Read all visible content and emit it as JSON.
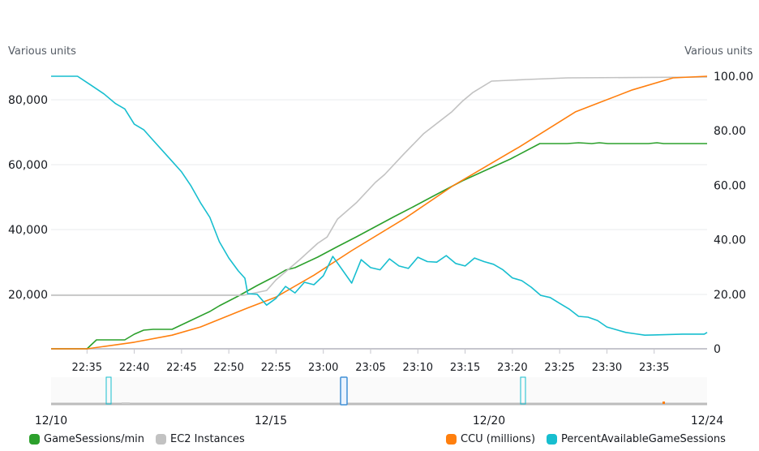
{
  "chart_data": {
    "type": "line",
    "left_axis": {
      "label": "Various units",
      "ticks": [
        20000,
        40000,
        60000,
        80000
      ],
      "tick_labels": [
        "20,000",
        "40,000",
        "60,000",
        "80,000"
      ],
      "range": [
        3250,
        87250
      ]
    },
    "right_axis": {
      "label": "Various units",
      "ticks": [
        0,
        20,
        40,
        60,
        80,
        100
      ],
      "tick_labels": [
        "0",
        "20.00",
        "40.00",
        "60.00",
        "80.00",
        "100.00"
      ],
      "range": [
        0,
        100
      ]
    },
    "x_axis": {
      "unit": "minutes after 22:30",
      "range": [
        1.2,
        70.6
      ],
      "ticks": [
        5,
        10,
        15,
        20,
        25,
        30,
        35,
        40,
        45,
        50,
        55,
        60,
        65
      ],
      "tick_labels": [
        "22:35",
        "22:40",
        "22:45",
        "22:50",
        "22:55",
        "23:00",
        "23:05",
        "23:10",
        "23:15",
        "23:20",
        "23:25",
        "23:30",
        "23:35"
      ]
    },
    "grid": true,
    "legend_position": "bottom",
    "series": [
      {
        "name": "GameSessions/min",
        "color": "#2ca02c",
        "axis": "left",
        "x": [
          1.2,
          5,
          6,
          9,
          10,
          11,
          12,
          14,
          16,
          18,
          19,
          21,
          23,
          25,
          26,
          27,
          29.4,
          31.5,
          33.5,
          37.5,
          39.5,
          41.6,
          44.7,
          49.8,
          52.9,
          55.8,
          57,
          58.4,
          59.2,
          60.1,
          64.4,
          65.3,
          66,
          70.6
        ],
        "y": [
          3250,
          3250,
          6000,
          6000,
          7750,
          9000,
          9250,
          9250,
          12000,
          14750,
          16500,
          19500,
          22750,
          25750,
          27500,
          28250,
          31500,
          34750,
          37750,
          44000,
          47000,
          50250,
          55000,
          61750,
          66500,
          66500,
          66750,
          66500,
          66750,
          66500,
          66500,
          66750,
          66500,
          66500
        ]
      },
      {
        "name": "EC2 Instances",
        "color": "#c2c2c2",
        "axis": "right",
        "x": [
          1.2,
          21.5,
          24,
          25,
          27.5,
          29.4,
          30.4,
          31.5,
          33.5,
          35.5,
          36.5,
          38.5,
          40.6,
          43.6,
          44.7,
          45.8,
          47.8,
          51.5,
          55.8,
          70.6
        ],
        "y": [
          19.6,
          19.6,
          21.4,
          25.3,
          32.7,
          38.7,
          41,
          47.6,
          53.6,
          61,
          64,
          71.4,
          78.9,
          87,
          90.8,
          94,
          98.2,
          98.8,
          99.4,
          99.7
        ]
      },
      {
        "name": "CCU (millions)",
        "color": "#ff7f0e",
        "axis": "right",
        "x": [
          1.2,
          5,
          10,
          14,
          17,
          22,
          25,
          29,
          33,
          38.7,
          43.8,
          50.7,
          56.7,
          62.7,
          67,
          70.6
        ],
        "y": [
          0,
          0,
          2.4,
          5,
          8,
          15,
          19,
          27,
          36,
          48,
          60,
          74,
          87,
          95,
          99.4,
          100
        ]
      },
      {
        "name": "PercentAvailableGameSessions",
        "color": "#17becf",
        "axis": "right",
        "x": [
          1.2,
          4,
          5.3,
          6.8,
          8,
          9,
          10,
          11,
          12,
          14,
          15,
          16,
          17,
          18,
          19,
          20,
          21,
          21.7,
          22,
          23,
          24,
          25,
          26,
          27,
          28,
          29,
          30,
          31,
          33,
          34,
          35,
          36,
          37,
          38,
          39,
          40,
          41,
          42,
          43,
          44,
          45,
          46,
          47,
          48,
          49,
          50,
          51,
          52,
          53,
          54,
          55,
          56,
          57,
          58,
          59,
          60,
          61,
          62,
          63,
          64,
          65,
          68,
          70.3,
          70.6
        ],
        "y": [
          100,
          100,
          97,
          93.5,
          90,
          88,
          82.4,
          80.4,
          76.5,
          68.8,
          64.9,
          59.8,
          53.6,
          48.2,
          39.3,
          33.3,
          28.6,
          25.9,
          20.2,
          20,
          16,
          18.5,
          22.9,
          20.5,
          24.4,
          23.5,
          26.8,
          33.9,
          24.1,
          32.7,
          29.8,
          29,
          33,
          30.4,
          29.5,
          33.6,
          32,
          31.8,
          34.2,
          31.3,
          30.4,
          33.3,
          32,
          31,
          29,
          26,
          25,
          22.6,
          19.6,
          18.8,
          16.7,
          14.6,
          11.9,
          11.6,
          10.4,
          8,
          7,
          6,
          5.5,
          5,
          5.1,
          5.4,
          5.4,
          6
        ]
      }
    ],
    "navigator": {
      "date_labels": [
        "12/10",
        "12/15",
        "12/20",
        "12/24"
      ]
    }
  }
}
